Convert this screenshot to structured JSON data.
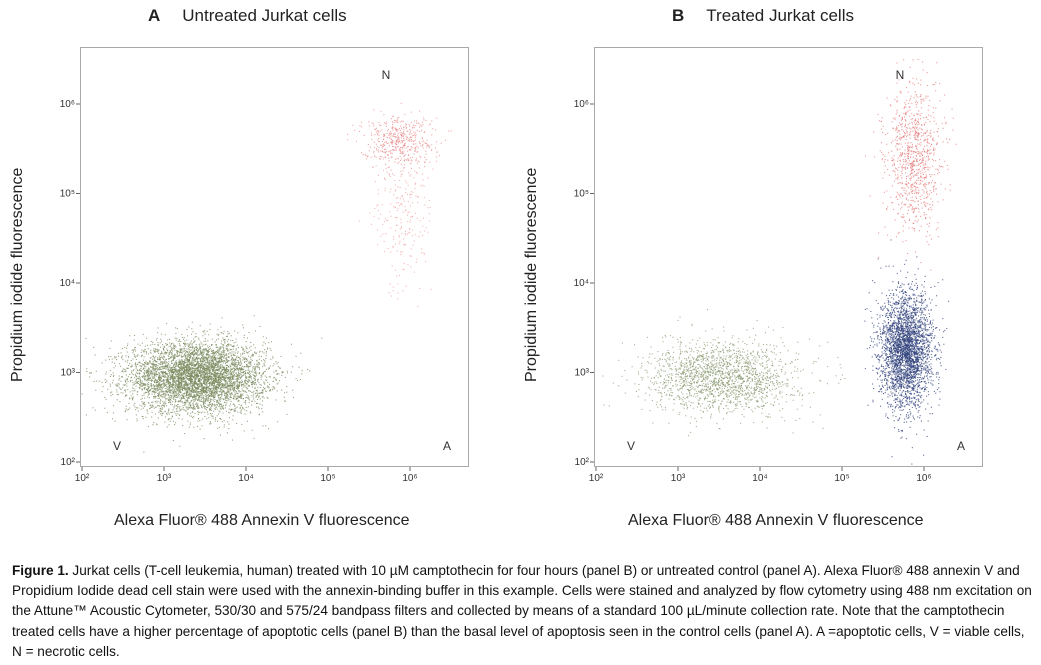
{
  "chart_data": [
    {
      "type": "scatter",
      "panel_letter": "A",
      "title": "Untreated Jurkat cells",
      "xlabel": "Alexa Fluor® 488 Annexin V fluorescence",
      "ylabel": "Propidium iodide fluorescence",
      "x_scale": "log",
      "y_scale": "log",
      "xlim": [
        100,
        3000000
      ],
      "ylim": [
        100,
        3000000
      ],
      "x_ticks": [
        "10²",
        "10³",
        "10⁴",
        "10⁵",
        "10⁶"
      ],
      "y_ticks": [
        "10²",
        "10³",
        "10⁴",
        "10⁵",
        "10⁶"
      ],
      "quadrant_labels": {
        "viable": "V",
        "apoptotic": "A",
        "necrotic": "N"
      },
      "populations": [
        {
          "name": "viable",
          "color": "#7a8a5e",
          "center": [
            2500,
            900
          ],
          "spread_log": [
            0.42,
            0.2
          ],
          "count": 5200
        },
        {
          "name": "necrotic",
          "color": "#e88a8a",
          "center": [
            700000,
            400000
          ],
          "spread_log": [
            0.22,
            0.14
          ],
          "count": 450
        },
        {
          "name": "necrotic-tail",
          "color": "#ef9f9f",
          "center": [
            800000,
            60000
          ],
          "spread_log": [
            0.18,
            0.45
          ],
          "count": 250
        }
      ]
    },
    {
      "type": "scatter",
      "panel_letter": "B",
      "title": "Treated Jurkat cells",
      "xlabel": "Alexa Fluor® 488 Annexin V fluorescence",
      "ylabel": "Propidium iodide fluorescence",
      "x_scale": "log",
      "y_scale": "log",
      "xlim": [
        100,
        3000000
      ],
      "ylim": [
        100,
        3000000
      ],
      "x_ticks": [
        "10²",
        "10³",
        "10⁴",
        "10⁵",
        "10⁶"
      ],
      "y_ticks": [
        "10²",
        "10³",
        "10⁴",
        "10⁵",
        "10⁶"
      ],
      "quadrant_labels": {
        "viable": "V",
        "apoptotic": "A",
        "necrotic": "N"
      },
      "populations": [
        {
          "name": "viable",
          "color": "#8a9870",
          "center": [
            3500,
            900
          ],
          "spread_log": [
            0.45,
            0.2
          ],
          "count": 1800
        },
        {
          "name": "apoptotic",
          "color": "#2e3f7a",
          "center": [
            600000,
            1800
          ],
          "spread_log": [
            0.16,
            0.32
          ],
          "count": 3000
        },
        {
          "name": "necrotic",
          "color": "#e47a7a",
          "center": [
            750000,
            250000
          ],
          "spread_log": [
            0.17,
            0.4
          ],
          "count": 900
        }
      ]
    }
  ],
  "caption": {
    "figure_label": "Figure 1.",
    "text": " Jurkat cells (T-cell leukemia, human) treated with 10 µM camptothecin for four hours (panel B) or untreated control (panel A). Alexa Fluor® 488 annexin V and Propidium Iodide dead cell stain were used with the annexin-binding buffer in this example. Cells were stained and analyzed by flow cytometry using 488 nm excitation on the Attune™ Acoustic Cytometer, 530/30 and 575/24 bandpass filters and collected by means of a standard 100 µL/minute collection rate. Note that the camptothecin treated cells have a higher percentage of apoptotic cells (panel B) than the basal level of apoptosis seen in the control cells (panel A). A =apoptotic cells, V = viable cells, N = necrotic cells."
  }
}
